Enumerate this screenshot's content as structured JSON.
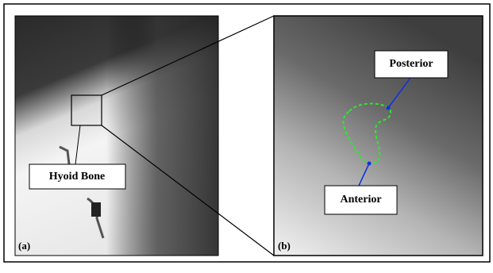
{
  "panel_a": {
    "label": "(a)",
    "annotation": "Hyoid Bone"
  },
  "panel_b": {
    "label": "(b)",
    "annotations": [
      "Posterior",
      "Anterior"
    ]
  }
}
